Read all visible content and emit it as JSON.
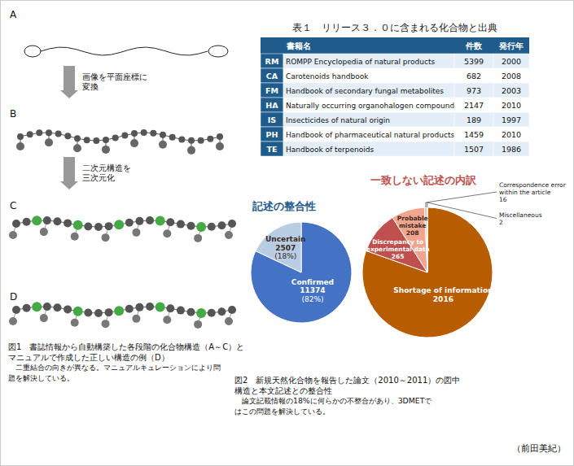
{
  "chart_data": [
    {
      "type": "table",
      "title": "表１　リリース３．０に含まれる化合物と出典",
      "headers": [
        "書籍名",
        "件数",
        "発行年"
      ],
      "categories": [
        "RM",
        "CA",
        "FM",
        "HA",
        "IS",
        "PH",
        "TE"
      ],
      "labels": [
        "ROMPP Encyclopedia of natural products",
        "Carotenoids handbook",
        "Handbook of secondary fungal metabolites",
        "Naturally occurring organohalogen compounds",
        "Insecticides of natural origin",
        "Handbook of pharmaceutical natural products",
        "Handbook of terpenoids"
      ],
      "series": [
        {
          "values": [
            5399,
            682,
            973,
            2147,
            189,
            1459,
            1507
          ]
        },
        {
          "values": [
            2000,
            2008,
            2003,
            2010,
            1997,
            2010,
            1986
          ]
        }
      ],
      "color": "#1F5C8B"
    },
    {
      "type": "pie",
      "title": "記述の整合性",
      "color": "#1F5C8B",
      "categories": [
        "Confirmed",
        "Uncertain"
      ],
      "values": [
        82,
        18
      ],
      "value_labels": [
        "(82%)",
        "(18%)"
      ],
      "counts": [
        11374,
        2507
      ],
      "colors": [
        "#4472C4",
        "#B8CCE4"
      ],
      "data_labels": true
    },
    {
      "type": "pie",
      "title": "一致しない記述の内訳",
      "color": "#C0504D",
      "categories": [
        "Shortage of information",
        "Discrepancy to experimental data",
        "Probable mistake",
        "Correspondence error within the article",
        "Miscellaneous"
      ],
      "values": [
        2016,
        265,
        208,
        16,
        2
      ],
      "colors": [
        "#B85C00",
        "#C0504D",
        "#F2A58E",
        "#E8C4B8",
        "#D9D9D9"
      ],
      "data_labels": true,
      "caption": [
        "図2　新規天然化合物を報告した論文（2010～2011）の図中",
        "構造と本文記述との整合性",
        "　論文記載情報の18%に何らかの不整合があり、3DMETで",
        "はこの問題を解決している。"
      ]
    },
    {
      "type": "diagram",
      "labels": [
        "A",
        "B",
        "C",
        "D"
      ],
      "steps": [
        [
          "画像を平面座標に",
          "変換"
        ],
        [
          "二次元構造を",
          "三次元化"
        ]
      ],
      "caption": [
        "図1　書誌情報から自動構築した各段階の化合物構造（A～C）と",
        "マニュアルで作成した正しい構造の例（D）",
        "　二重結合の向きが異なる。マニュアルキュレーションにより問",
        "題を解決している。"
      ]
    }
  ],
  "author": "（前田美紀）"
}
